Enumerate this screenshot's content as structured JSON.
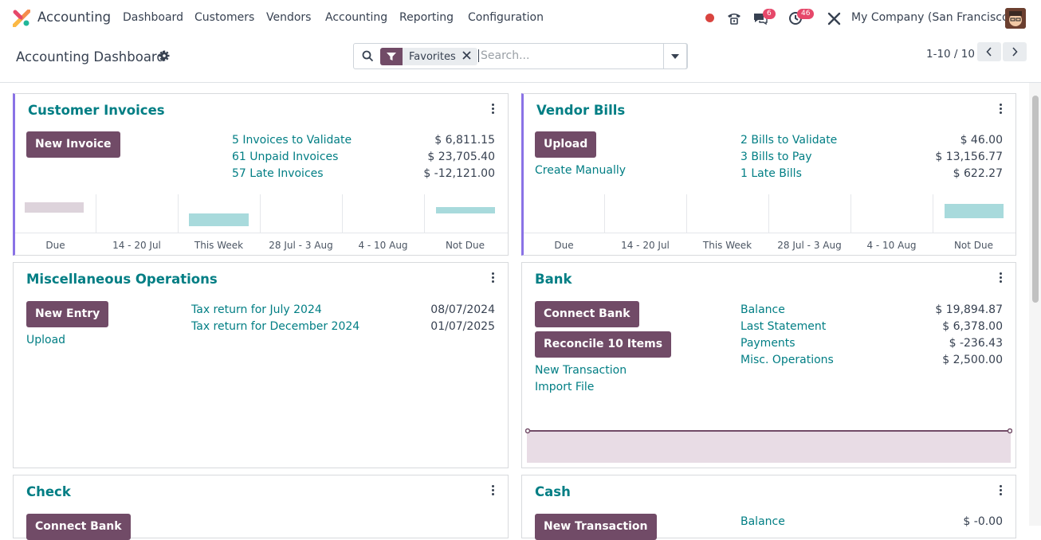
{
  "nav": {
    "app_name": "Accounting",
    "menu": [
      "Dashboard",
      "Customers",
      "Vendors",
      "Accounting",
      "Reporting",
      "Configuration"
    ],
    "messages_count": "6",
    "activities_count": "46",
    "company": "My Company (San Francisco)"
  },
  "control_panel": {
    "title": "Accounting Dashboard",
    "facet_label": "Favorites",
    "search_placeholder": "Search...",
    "pager": "1-10 / 10"
  },
  "cards": {
    "customer_invoices": {
      "title": "Customer Invoices",
      "button": "New Invoice",
      "rows": [
        {
          "label": "5 Invoices to Validate",
          "amount": "$ 6,811.15"
        },
        {
          "label": "61 Unpaid Invoices",
          "amount": "$ 23,705.40"
        },
        {
          "label": "57 Late Invoices",
          "amount": "$ -12,121.00"
        }
      ],
      "graph_labels": [
        "Due",
        "14 - 20 Jul",
        "This Week",
        "28 Jul - 3 Aug",
        "4 - 10 Aug",
        "Not Due"
      ]
    },
    "vendor_bills": {
      "title": "Vendor Bills",
      "button": "Upload",
      "link": "Create Manually",
      "rows": [
        {
          "label": "2 Bills to Validate",
          "amount": "$ 46.00"
        },
        {
          "label": "3 Bills to Pay",
          "amount": "$ 13,156.77"
        },
        {
          "label": "1 Late Bills",
          "amount": "$ 622.27"
        }
      ],
      "graph_labels": [
        "Due",
        "14 - 20 Jul",
        "This Week",
        "28 Jul - 3 Aug",
        "4 - 10 Aug",
        "Not Due"
      ]
    },
    "misc": {
      "title": "Miscellaneous Operations",
      "button": "New Entry",
      "link": "Upload",
      "rows": [
        {
          "label": "Tax return for July 2024",
          "amount": "08/07/2024"
        },
        {
          "label": "Tax return for December 2024",
          "amount": "01/07/2025"
        }
      ]
    },
    "bank": {
      "title": "Bank",
      "button1": "Connect Bank",
      "button2": "Reconcile 10 Items",
      "link1": "New Transaction",
      "link2": "Import File",
      "rows": [
        {
          "label": "Balance",
          "amount": "$ 19,894.87"
        },
        {
          "label": "Last Statement",
          "amount": "$ 6,378.00"
        },
        {
          "label": "Payments",
          "amount": "$ -236.43"
        },
        {
          "label": "Misc. Operations",
          "amount": "$ 2,500.00"
        }
      ]
    },
    "check": {
      "title": "Check",
      "button": "Connect Bank"
    },
    "cash": {
      "title": "Cash",
      "button": "New Transaction",
      "rows": [
        {
          "label": "Balance",
          "amount": "$ -0.00"
        }
      ]
    }
  },
  "colors": {
    "brand": "#714b67",
    "link": "#017e84",
    "accent": "#8a72e6",
    "bar_teal": "#a8dadc",
    "bar_gray": "#ddd3db"
  }
}
